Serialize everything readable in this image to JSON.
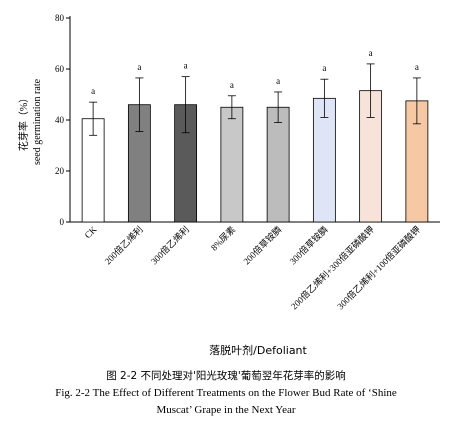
{
  "chart_data": {
    "type": "bar",
    "categories": [
      "CK",
      "200倍乙烯利",
      "300倍乙烯利",
      "8%尿素",
      "200倍草铵膦",
      "300倍草铵膦",
      "200倍乙烯利+300倍亚磷酸钾",
      "300倍乙烯利+100倍亚磷酸钾"
    ],
    "values": [
      40.5,
      46,
      46,
      45,
      45,
      48.5,
      51.5,
      47.5
    ],
    "errors": [
      6.5,
      10.5,
      11,
      4.5,
      6,
      7.5,
      10.5,
      9
    ],
    "significance": [
      "a",
      "a",
      "a",
      "a",
      "a",
      "a",
      "a",
      "a"
    ],
    "bar_colors": [
      "#ffffff",
      "#808080",
      "#5a5a5a",
      "#c8c8c8",
      "#bcbcbc",
      "#dfe4f6",
      "#f7e3da",
      "#f6c9a4"
    ],
    "ylabel_cn": "花芽率（%）",
    "ylabel_en": "seed germination rate",
    "xlabel": "落脱叶剂/Defoliant",
    "ylim": [
      0,
      80
    ],
    "yticks": [
      0,
      20,
      40,
      60,
      80
    ],
    "grid": false
  },
  "caption": {
    "cn": "图 2-2 不同处理对'阳光玫瑰'葡萄翌年花芽率的影响",
    "en_line1": "Fig. 2-2 The Effect of Different Treatments on the Flower Bud Rate of ‘Shine",
    "en_line2": "Muscat’ Grape in the Next Year"
  }
}
